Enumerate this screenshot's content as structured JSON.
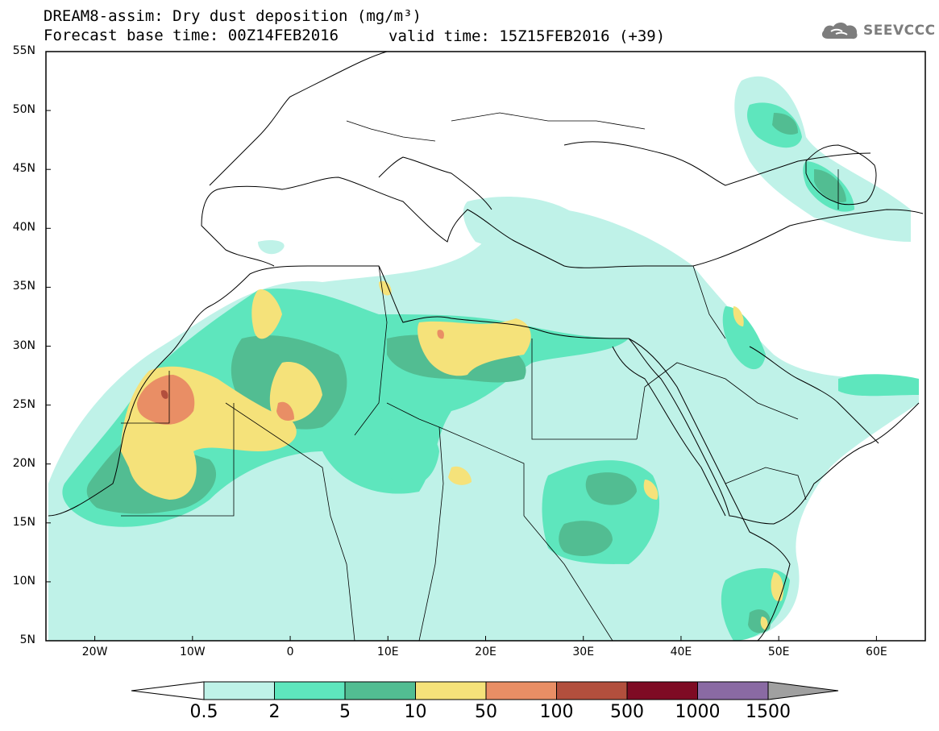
{
  "title": {
    "line1": "DREAM8-assim: Dry dust deposition (mg/m³)",
    "line2": "Forecast base time: 00Z14FEB2016",
    "valid": "valid time: 15Z15FEB2016 (+39)"
  },
  "logo": {
    "icon": "cloud-icon",
    "text": "SEEVCCC"
  },
  "axes": {
    "lat_labels": [
      "55N",
      "50N",
      "45N",
      "40N",
      "35N",
      "30N",
      "25N",
      "20N",
      "15N",
      "10N",
      "5N"
    ],
    "lat_values": [
      55,
      50,
      45,
      40,
      35,
      30,
      25,
      20,
      15,
      10,
      5
    ],
    "lon_labels": [
      "20W",
      "10W",
      "0",
      "10E",
      "20E",
      "30E",
      "40E",
      "50E",
      "60E"
    ],
    "lon_values": [
      -20,
      -10,
      0,
      10,
      20,
      30,
      40,
      50,
      60
    ],
    "lon_range": [
      -25,
      65
    ],
    "lat_range": [
      5,
      55
    ]
  },
  "colorbar": {
    "labels": [
      "0.5",
      "2",
      "5",
      "10",
      "50",
      "100",
      "500",
      "1000",
      "1500"
    ],
    "colors": [
      "#bff2e8",
      "#5ee6bd",
      "#52bd92",
      "#f5e27a",
      "#e98e65",
      "#b24f3d",
      "#7e0b24",
      "#8a6aa3",
      "#a0a0a0"
    ]
  },
  "dust_colors": {
    "level1": "#bff2e8",
    "level2": "#5ee6bd",
    "level3": "#52bd92",
    "level4": "#f5e27a",
    "level5": "#e98e65",
    "level6": "#b24f3d"
  }
}
